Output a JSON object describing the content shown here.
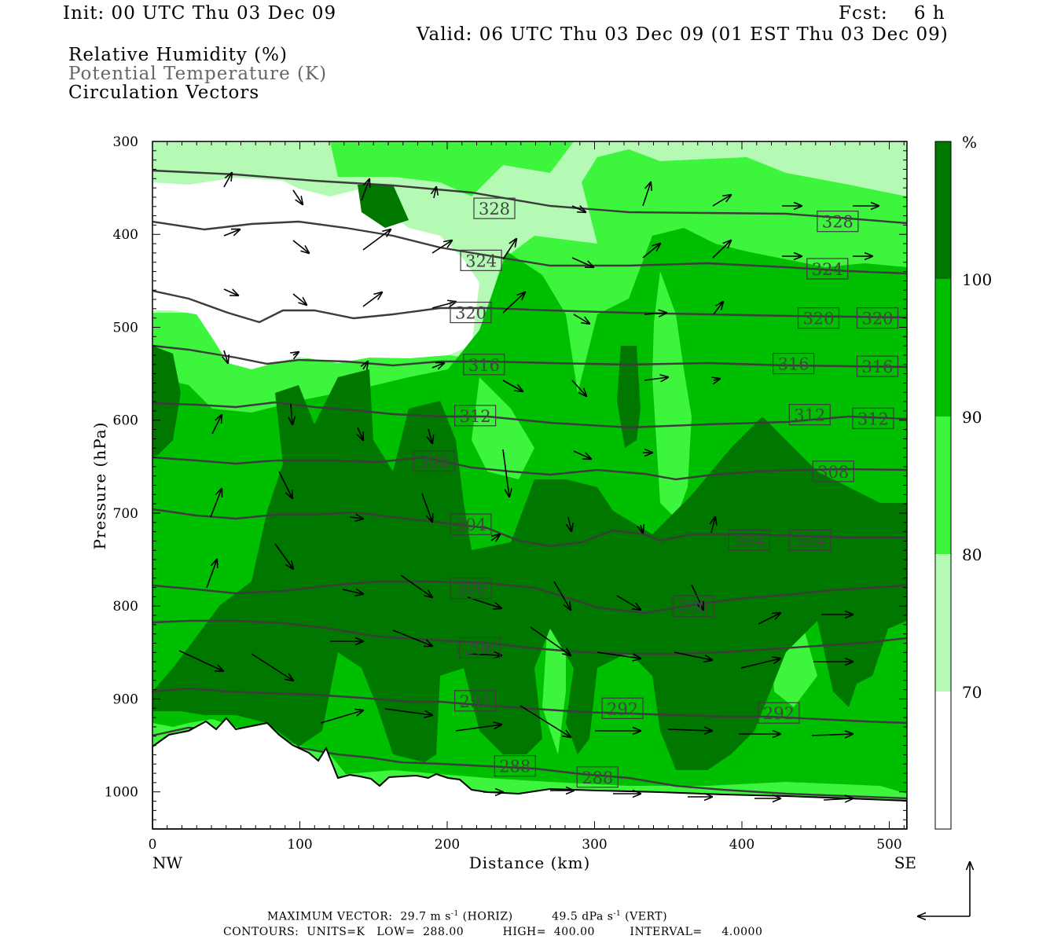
{
  "header": {
    "init": "Init: 00 UTC Thu 03 Dec 09",
    "fcst": "Fcst:    6 h",
    "valid": "Valid: 06 UTC Thu 03 Dec 09 (01 EST Thu 03 Dec 09)"
  },
  "fields": {
    "rh": "Relative Humidity (%)",
    "theta": "Potential Temperature (K)",
    "circ": "Circulation Vectors"
  },
  "colors": {
    "rh_below_70": "#ffffff",
    "rh_70_80": "#b4fab4",
    "rh_80_90": "#3cf53c",
    "rh_90_100": "#00be00",
    "rh_100_plus": "#007800",
    "contour": "#3c3c3c"
  },
  "chart_data": {
    "type": "heatmap",
    "xlabel": "Distance (km)",
    "ylabel": "Pressure (hPa)",
    "xlim": [
      0,
      512
    ],
    "ylim": [
      1040,
      300
    ],
    "x_ticks": [
      "0",
      "100",
      "200",
      "300",
      "400",
      "500"
    ],
    "y_ticks": [
      "300",
      "400",
      "500",
      "600",
      "700",
      "800",
      "900",
      "1000"
    ],
    "left_end_label": "NW",
    "right_end_label": "SE",
    "colorbar_unit": "%",
    "colorbar_ticks": [
      "100",
      "90",
      "80",
      "70"
    ],
    "contour_levels": [
      288,
      292,
      296,
      300,
      304,
      308,
      312,
      316,
      320,
      324,
      328
    ],
    "contour_labels": [
      {
        "text": "328",
        "x": 232,
        "p": 372
      },
      {
        "text": "328",
        "x": 465,
        "p": 386
      },
      {
        "text": "324",
        "x": 223,
        "p": 428
      },
      {
        "text": "324",
        "x": 458,
        "p": 437
      },
      {
        "text": "320",
        "x": 216,
        "p": 484
      },
      {
        "text": "320",
        "x": 452,
        "p": 490
      },
      {
        "text": "320",
        "x": 492,
        "p": 490
      },
      {
        "text": "316",
        "x": 225,
        "p": 540
      },
      {
        "text": "316",
        "x": 435,
        "p": 539
      },
      {
        "text": "316",
        "x": 492,
        "p": 542
      },
      {
        "text": "312",
        "x": 219,
        "p": 595
      },
      {
        "text": "312",
        "x": 446,
        "p": 594
      },
      {
        "text": "312",
        "x": 489,
        "p": 598
      },
      {
        "text": "308",
        "x": 191,
        "p": 644
      },
      {
        "text": "308",
        "x": 462,
        "p": 655
      },
      {
        "text": "304",
        "x": 216,
        "p": 712
      },
      {
        "text": "304",
        "x": 405,
        "p": 729
      },
      {
        "text": "304",
        "x": 446,
        "p": 729
      },
      {
        "text": "300",
        "x": 216,
        "p": 781
      },
      {
        "text": "300",
        "x": 367,
        "p": 800
      },
      {
        "text": "296",
        "x": 222,
        "p": 845
      },
      {
        "text": "292",
        "x": 219,
        "p": 902
      },
      {
        "text": "292",
        "x": 319,
        "p": 910
      },
      {
        "text": "292",
        "x": 425,
        "p": 915
      },
      {
        "text": "288",
        "x": 246,
        "p": 972
      },
      {
        "text": "288",
        "x": 302,
        "p": 984
      }
    ],
    "vector_labels": {
      "max_vector": "MAXIMUM VECTOR:",
      "horiz_value": "29.7 m s",
      "horiz_suffix": " (HORIZ)",
      "vert_value": "49.5 dPa s",
      "vert_suffix": " (VERT)",
      "exponent": "-1"
    },
    "contour_info": "CONTOURS:  UNITS=K   LOW=  288.00          HIGH=  400.00         INTERVAL=     4.0000"
  }
}
